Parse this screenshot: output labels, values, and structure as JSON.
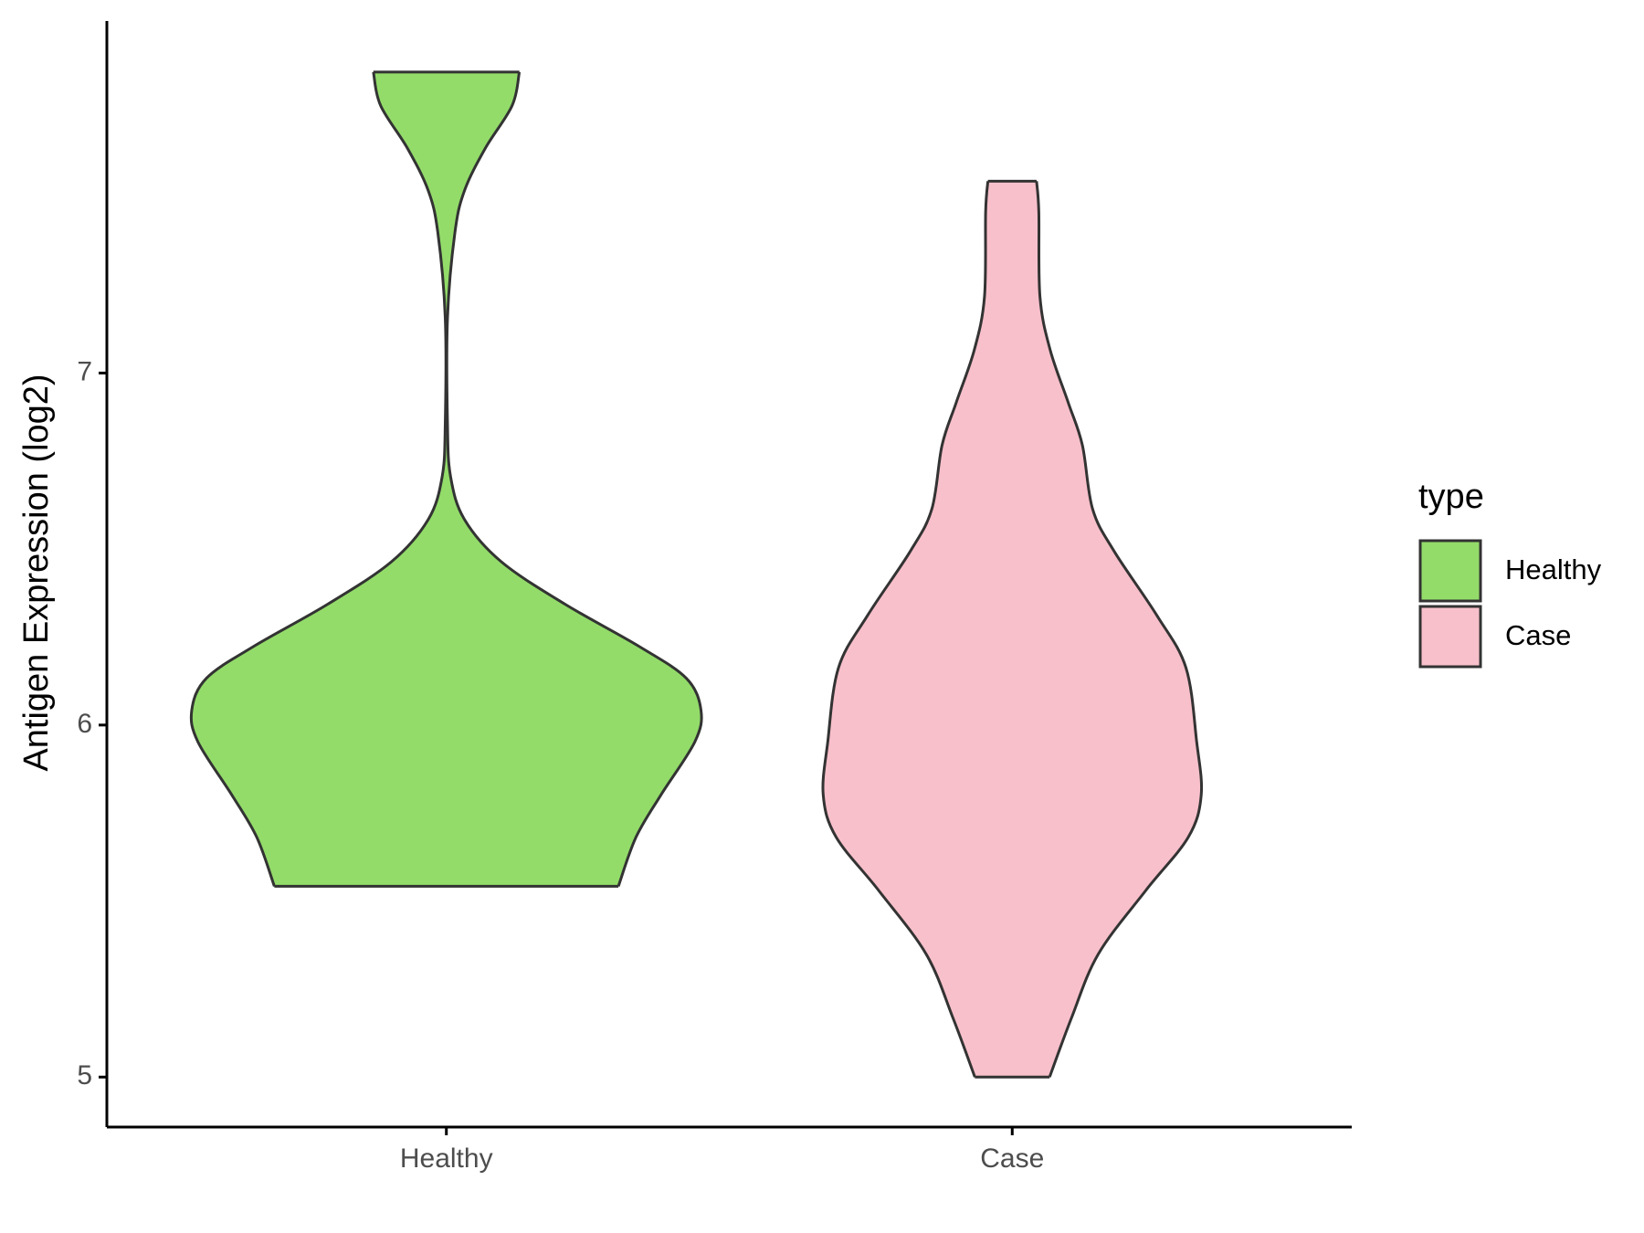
{
  "chart_data": {
    "type": "violin",
    "y_label": "Antigen Expression (log2)",
    "categories": [
      "Healthy",
      "Case"
    ],
    "ylim": [
      4.858,
      8.0
    ],
    "yticks": [
      5,
      6,
      7
    ],
    "legend": {
      "title": "type",
      "position": "right"
    },
    "series": [
      {
        "name": "Healthy",
        "color": "#93dc6a",
        "y": [
          5.542,
          5.681,
          5.801,
          5.952,
          6.042,
          6.133,
          6.223,
          6.343,
          6.464,
          6.584,
          6.705,
          6.855,
          7.157,
          7.398,
          7.518,
          7.639,
          7.759,
          7.855
        ],
        "half_width": [
          0.304,
          0.335,
          0.379,
          0.439,
          0.45,
          0.424,
          0.341,
          0.21,
          0.097,
          0.032,
          0.0075,
          0.002,
          0.002,
          0.015,
          0.032,
          0.069,
          0.116,
          0.129
        ]
      },
      {
        "name": "Case",
        "color": "#f8c0cb",
        "y": [
          5.0,
          5.169,
          5.349,
          5.53,
          5.681,
          5.801,
          5.952,
          6.163,
          6.313,
          6.494,
          6.614,
          6.795,
          6.916,
          7.066,
          7.217,
          7.458,
          7.545
        ],
        "half_width": [
          0.066,
          0.105,
          0.152,
          0.236,
          0.311,
          0.334,
          0.326,
          0.307,
          0.255,
          0.18,
          0.142,
          0.124,
          0.099,
          0.067,
          0.049,
          0.047,
          0.043
        ]
      }
    ]
  }
}
